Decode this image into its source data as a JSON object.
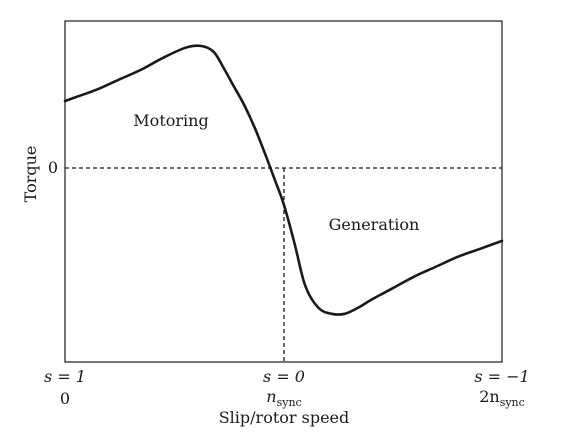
{
  "chart_data": {
    "type": "line",
    "title": "",
    "xlabel": "Slip/rotor speed",
    "ylabel": "Torque",
    "grid": false,
    "legend": "none",
    "y_zero_label": "0",
    "x_ticks": [
      {
        "x": 0,
        "slip_label": "s = 1",
        "speed_label": "0"
      },
      {
        "x": 1,
        "slip_label": "s = 0",
        "speed_label": "n",
        "speed_sub": "sync"
      },
      {
        "x": 2,
        "slip_label": "s = −1",
        "speed_label": "2n",
        "speed_sub": "sync"
      }
    ],
    "region_labels": [
      "Motoring",
      "Generation"
    ],
    "xlim": [
      0,
      2
    ],
    "ylim": [
      -1.0,
      0.74
    ],
    "series": [
      {
        "color": "#1a1a1a",
        "x": [
          0,
          0.05,
          0.15,
          0.25,
          0.35,
          0.45,
          0.55,
          0.62,
          0.68,
          0.73,
          0.77,
          0.82,
          0.87,
          0.92,
          0.96,
          1.0,
          1.05,
          1.1,
          1.16,
          1.22,
          1.28,
          1.34,
          1.4,
          1.5,
          1.6,
          1.7,
          1.8,
          1.9,
          2.0
        ],
        "y": [
          0.34,
          0.36,
          0.4,
          0.45,
          0.5,
          0.56,
          0.61,
          0.62,
          0.59,
          0.5,
          0.42,
          0.32,
          0.2,
          0.06,
          -0.06,
          -0.18,
          -0.38,
          -0.6,
          -0.71,
          -0.74,
          -0.74,
          -0.71,
          -0.67,
          -0.61,
          -0.55,
          -0.5,
          -0.45,
          -0.41,
          -0.37
        ]
      }
    ]
  }
}
